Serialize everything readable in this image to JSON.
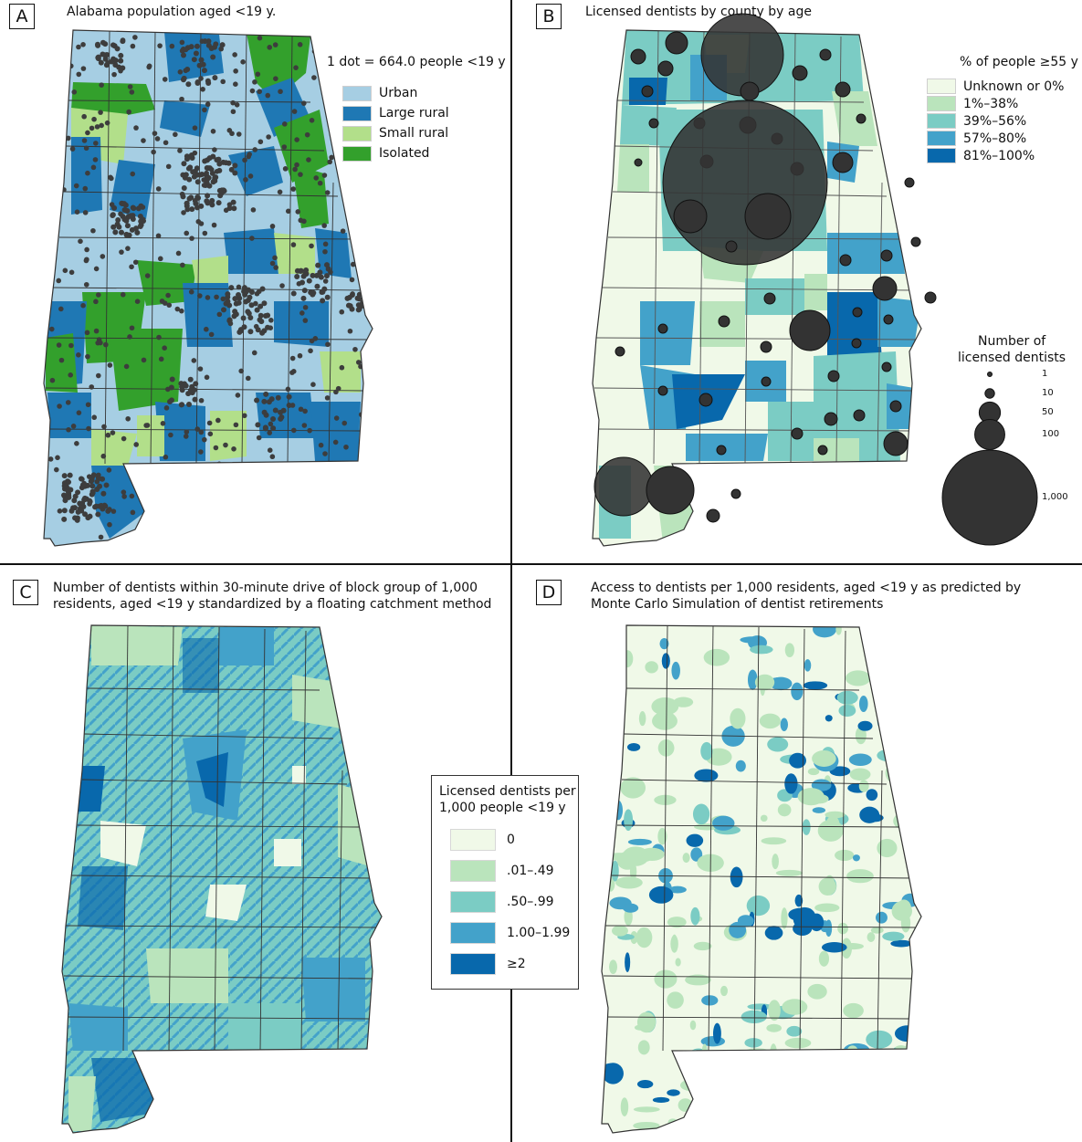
{
  "panels": {
    "a": {
      "letter": "A",
      "title": "Alabama population aged <19 y."
    },
    "b": {
      "letter": "B",
      "title": "Licensed dentists by county by age"
    },
    "c": {
      "letter": "C",
      "title_line1": "Number of dentists within  30-minute drive of block group of 1,000",
      "title_line2": "residents, aged <19 y standardized by a floating catchment method"
    },
    "d": {
      "letter": "D",
      "title_line1": "Access to dentists per 1,000 residents, aged <19 y as predicted by",
      "title_line2": "Monte Carlo Simulation of dentist retirements"
    }
  },
  "legend_a": {
    "dot_note": "1 dot = 664.0 people <19 y",
    "items": [
      {
        "label": "Urban",
        "color": "#a6cee3"
      },
      {
        "label": "Large rural",
        "color": "#1f78b4"
      },
      {
        "label": "Small rural",
        "color": "#b2df8a"
      },
      {
        "label": "Isolated",
        "color": "#33a02c"
      }
    ]
  },
  "legend_b_fill": {
    "title": "% of people ≥55 y",
    "items": [
      {
        "label": "Unknown or 0%",
        "color": "#f0f9e8"
      },
      {
        "label": "1%–38%",
        "color": "#bae4bc"
      },
      {
        "label": "39%–56%",
        "color": "#7bccc4"
      },
      {
        "label": "57%–80%",
        "color": "#43a2ca"
      },
      {
        "label": "81%–100%",
        "color": "#0868ac"
      }
    ]
  },
  "legend_b_size": {
    "title_line1": "Number of",
    "title_line2": "licensed dentists",
    "items": [
      {
        "label": "1",
        "value": 1
      },
      {
        "label": "10",
        "value": 10
      },
      {
        "label": "50",
        "value": 50
      },
      {
        "label": "100",
        "value": 100
      },
      {
        "label": "1,000",
        "value": 1000
      }
    ]
  },
  "legend_cd": {
    "title_line1": "Licensed dentists per",
    "title_line2": "1,000 people <19 y",
    "items": [
      {
        "label": "0",
        "color": "#f0f9e8"
      },
      {
        "label": ".01–.49",
        "color": "#bae4bc"
      },
      {
        "label": ".50–.99",
        "color": "#7bccc4"
      },
      {
        "label": "1.00–1.99",
        "color": "#43a2ca"
      },
      {
        "label": "≥2",
        "color": "#0868ac"
      }
    ]
  },
  "colors": {
    "dot": "#3d3d3d",
    "border": "#333333",
    "bubble": "#333333"
  }
}
